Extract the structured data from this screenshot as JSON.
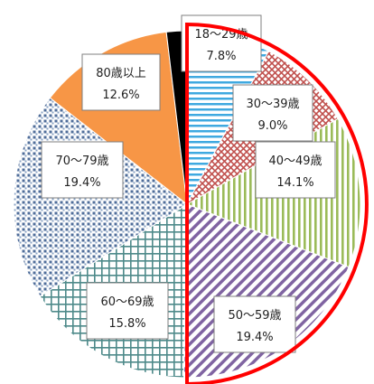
{
  "chart_data": {
    "type": "pie",
    "categories": [
      "18～29歳",
      "30～39歳",
      "40～49歳",
      "50～59歳",
      "60～69歳",
      "70～79歳",
      "80歳以上",
      ""
    ],
    "values": [
      7.8,
      9.0,
      14.1,
      19.4,
      15.8,
      19.4,
      12.6,
      1.9
    ],
    "value_labels": [
      "7.8%",
      "9.0%",
      "14.1%",
      "19.4%",
      "15.8%",
      "19.4%",
      "12.6%",
      ""
    ],
    "start_angle_deg": 0,
    "direction": "clockwise",
    "highlight": {
      "covers": [
        "18～29歳",
        "30～39歳",
        "40～49歳",
        "50～59歳"
      ],
      "color": "#ff0000"
    },
    "colors": {
      "c18_29": "#3fa9e0",
      "c30_39": "#c0504d",
      "c40_49": "#9bbb59",
      "c50_59": "#8064a2",
      "c60_69": "#4e8a8a",
      "c70_79": "#4f6d9a",
      "c80": "#f79646",
      "unknown": "#000000"
    }
  }
}
